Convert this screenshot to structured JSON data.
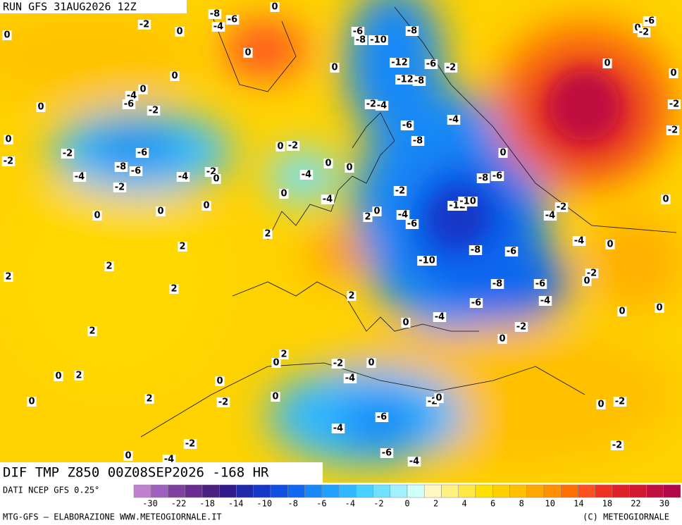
{
  "header": {
    "run": "RUN GFS 31AUG2026 12Z"
  },
  "map": {
    "title": "DIF TMP Z850 00Z08SEP2026 -168 HR",
    "contour_labels": [
      -8,
      0,
      -2,
      0,
      0,
      -4,
      -6,
      0,
      0,
      0,
      -6,
      -8,
      -10,
      -8,
      -12,
      -6,
      -2,
      -12,
      -8,
      -2,
      -4,
      -6,
      -8,
      -4,
      0,
      0,
      -4,
      -6,
      -2,
      0,
      0,
      -2,
      -6,
      -8,
      -6,
      -2,
      -4,
      -2,
      -4,
      -2,
      0,
      0,
      -2,
      -4,
      0,
      0,
      -4,
      0,
      0,
      0,
      0,
      -2,
      0,
      2,
      -4,
      -6,
      -12,
      -10,
      -8,
      -6,
      -2,
      -4,
      2,
      2,
      2,
      2,
      2,
      -8,
      -6,
      -10,
      -8,
      -6,
      -6,
      -4,
      0,
      -2,
      0,
      -4,
      2,
      -4,
      0,
      -2,
      0,
      0,
      0,
      2,
      2,
      0,
      -2,
      0,
      -4,
      0,
      0,
      2,
      0,
      -2,
      2,
      0,
      -2,
      0,
      -6,
      -4,
      0,
      -2,
      -2,
      -2,
      -6,
      -4,
      0,
      -4,
      0,
      -6,
      -2,
      -2,
      0,
      -2,
      0,
      0
    ]
  },
  "footer": {
    "source": "DATI NCEP GFS 0.25°",
    "credit": "MTG-GFS – ELABORAZIONE WWW.METEOGIORNALE.IT",
    "copyright": "(C) METEOGIORNALE"
  },
  "colorbar": {
    "ticks": [
      -30,
      -22,
      -18,
      -14,
      -10,
      -8,
      -6,
      -4,
      -2,
      0,
      2,
      4,
      6,
      8,
      10,
      14,
      18,
      22,
      30
    ],
    "colors": [
      "#c080d0",
      "#a060c0",
      "#8040a0",
      "#6a2c90",
      "#4a2080",
      "#301a8c",
      "#1e2aa8",
      "#1438c8",
      "#1050e0",
      "#1068f0",
      "#1888f8",
      "#20a0ff",
      "#30b8ff",
      "#48d0ff",
      "#70e0ff",
      "#a0f0ff",
      "#d0fff8",
      "#fff8c0",
      "#fff080",
      "#ffe840",
      "#ffe000",
      "#ffd000",
      "#ffc000",
      "#ffa800",
      "#ff9000",
      "#ff7000",
      "#ff5020",
      "#f03020",
      "#e02028",
      "#d01830",
      "#c01040",
      "#b00848"
    ]
  }
}
